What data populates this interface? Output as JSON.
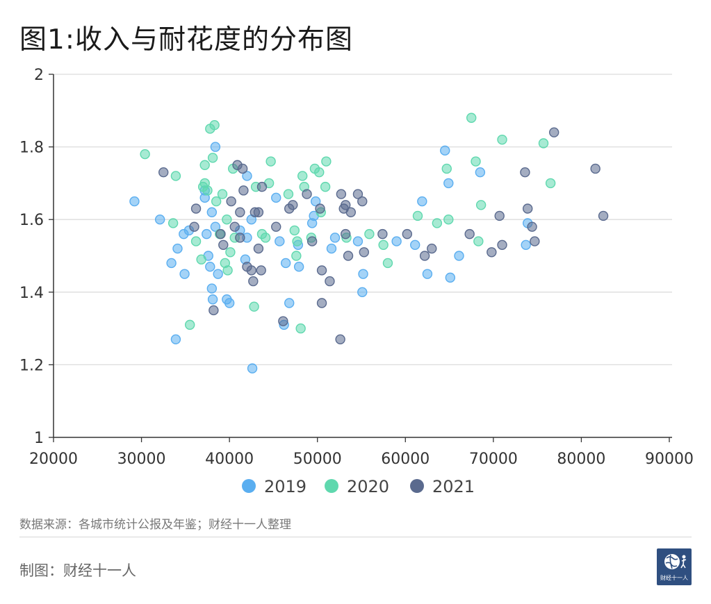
{
  "title": "图1:收入与耐花度的分布图",
  "source": "数据来源：各城市统计公报及年鉴；财经十一人整理",
  "maker": "制图：财经十一人",
  "logo_text": "财经十一人",
  "chart_data": {
    "type": "scatter",
    "title": "图1:收入与耐花度的分布图",
    "xlabel": "",
    "ylabel": "",
    "xlim": [
      20000,
      90000
    ],
    "ylim": [
      1,
      2
    ],
    "xticks": [
      "20000",
      "30000",
      "40000",
      "50000",
      "60000",
      "70000",
      "80000",
      "90000"
    ],
    "yticks": [
      "1",
      "1.2",
      "1.4",
      "1.6",
      "1.8",
      "2"
    ],
    "grid": "horizontal",
    "legend_position": "bottom",
    "series": [
      {
        "name": "2019",
        "color": "#5aaef0",
        "points": [
          [
            29200,
            1.65
          ],
          [
            32100,
            1.6
          ],
          [
            33400,
            1.48
          ],
          [
            33900,
            1.27
          ],
          [
            34100,
            1.52
          ],
          [
            34800,
            1.56
          ],
          [
            34900,
            1.45
          ],
          [
            35400,
            1.57
          ],
          [
            37200,
            1.66
          ],
          [
            37200,
            1.68
          ],
          [
            37400,
            1.56
          ],
          [
            37600,
            1.5
          ],
          [
            37800,
            1.47
          ],
          [
            38000,
            1.62
          ],
          [
            38000,
            1.41
          ],
          [
            38100,
            1.38
          ],
          [
            38400,
            1.8
          ],
          [
            38400,
            1.58
          ],
          [
            38700,
            1.45
          ],
          [
            39700,
            1.38
          ],
          [
            40000,
            1.37
          ],
          [
            41200,
            1.57
          ],
          [
            41800,
            1.49
          ],
          [
            42000,
            1.55
          ],
          [
            42000,
            1.72
          ],
          [
            42500,
            1.6
          ],
          [
            42600,
            1.19
          ],
          [
            45300,
            1.66
          ],
          [
            45700,
            1.54
          ],
          [
            46200,
            1.31
          ],
          [
            46400,
            1.48
          ],
          [
            46800,
            1.37
          ],
          [
            47800,
            1.53
          ],
          [
            47900,
            1.47
          ],
          [
            49400,
            1.59
          ],
          [
            49600,
            1.61
          ],
          [
            49800,
            1.65
          ],
          [
            51600,
            1.52
          ],
          [
            52000,
            1.55
          ],
          [
            54600,
            1.54
          ],
          [
            55100,
            1.4
          ],
          [
            55200,
            1.45
          ],
          [
            59000,
            1.54
          ],
          [
            61100,
            1.53
          ],
          [
            61900,
            1.65
          ],
          [
            62500,
            1.45
          ],
          [
            64500,
            1.79
          ],
          [
            64900,
            1.7
          ],
          [
            65100,
            1.44
          ],
          [
            66100,
            1.5
          ],
          [
            68500,
            1.73
          ],
          [
            73700,
            1.53
          ],
          [
            73900,
            1.59
          ]
        ]
      },
      {
        "name": "2020",
        "color": "#5fd8ae",
        "points": [
          [
            30400,
            1.78
          ],
          [
            33600,
            1.59
          ],
          [
            33900,
            1.72
          ],
          [
            35500,
            1.31
          ],
          [
            36200,
            1.54
          ],
          [
            36800,
            1.49
          ],
          [
            37000,
            1.69
          ],
          [
            37200,
            1.75
          ],
          [
            37200,
            1.7
          ],
          [
            37500,
            1.68
          ],
          [
            37800,
            1.85
          ],
          [
            38100,
            1.77
          ],
          [
            38300,
            1.86
          ],
          [
            38500,
            1.65
          ],
          [
            38900,
            1.56
          ],
          [
            39200,
            1.67
          ],
          [
            39500,
            1.48
          ],
          [
            39700,
            1.6
          ],
          [
            39800,
            1.46
          ],
          [
            40100,
            1.51
          ],
          [
            40400,
            1.74
          ],
          [
            40600,
            1.55
          ],
          [
            42800,
            1.36
          ],
          [
            43000,
            1.69
          ],
          [
            43700,
            1.56
          ],
          [
            44100,
            1.55
          ],
          [
            44500,
            1.7
          ],
          [
            44700,
            1.76
          ],
          [
            46700,
            1.67
          ],
          [
            47400,
            1.57
          ],
          [
            47600,
            1.5
          ],
          [
            47700,
            1.54
          ],
          [
            48100,
            1.3
          ],
          [
            48300,
            1.72
          ],
          [
            48500,
            1.69
          ],
          [
            49300,
            1.55
          ],
          [
            49700,
            1.74
          ],
          [
            50200,
            1.73
          ],
          [
            50400,
            1.62
          ],
          [
            50900,
            1.69
          ],
          [
            51000,
            1.76
          ],
          [
            53300,
            1.55
          ],
          [
            55900,
            1.56
          ],
          [
            57500,
            1.53
          ],
          [
            58000,
            1.48
          ],
          [
            61400,
            1.61
          ],
          [
            63600,
            1.59
          ],
          [
            64700,
            1.74
          ],
          [
            64900,
            1.6
          ],
          [
            67500,
            1.88
          ],
          [
            68000,
            1.76
          ],
          [
            68300,
            1.54
          ],
          [
            68600,
            1.64
          ],
          [
            71000,
            1.82
          ],
          [
            75700,
            1.81
          ],
          [
            76500,
            1.7
          ]
        ]
      },
      {
        "name": "2021",
        "color": "#5a6a8e",
        "points": [
          [
            32500,
            1.73
          ],
          [
            36000,
            1.58
          ],
          [
            36200,
            1.63
          ],
          [
            38200,
            1.35
          ],
          [
            39000,
            1.56
          ],
          [
            39300,
            1.53
          ],
          [
            40200,
            1.65
          ],
          [
            40600,
            1.58
          ],
          [
            40900,
            1.75
          ],
          [
            41200,
            1.55
          ],
          [
            41200,
            1.62
          ],
          [
            41500,
            1.74
          ],
          [
            41600,
            1.68
          ],
          [
            42000,
            1.47
          ],
          [
            42500,
            1.46
          ],
          [
            42700,
            1.43
          ],
          [
            42900,
            1.62
          ],
          [
            43300,
            1.62
          ],
          [
            43300,
            1.52
          ],
          [
            43600,
            1.46
          ],
          [
            43700,
            1.69
          ],
          [
            45300,
            1.58
          ],
          [
            46100,
            1.32
          ],
          [
            46800,
            1.63
          ],
          [
            47200,
            1.64
          ],
          [
            48800,
            1.67
          ],
          [
            49400,
            1.54
          ],
          [
            50300,
            1.63
          ],
          [
            50500,
            1.46
          ],
          [
            50500,
            1.37
          ],
          [
            51400,
            1.43
          ],
          [
            52600,
            1.27
          ],
          [
            52700,
            1.67
          ],
          [
            53000,
            1.63
          ],
          [
            53200,
            1.64
          ],
          [
            53200,
            1.56
          ],
          [
            53500,
            1.5
          ],
          [
            53800,
            1.62
          ],
          [
            54600,
            1.67
          ],
          [
            55100,
            1.65
          ],
          [
            55300,
            1.51
          ],
          [
            57400,
            1.56
          ],
          [
            60200,
            1.56
          ],
          [
            62200,
            1.5
          ],
          [
            63000,
            1.52
          ],
          [
            67300,
            1.56
          ],
          [
            69800,
            1.51
          ],
          [
            70700,
            1.61
          ],
          [
            71000,
            1.53
          ],
          [
            73600,
            1.73
          ],
          [
            73900,
            1.63
          ],
          [
            74400,
            1.58
          ],
          [
            74700,
            1.54
          ],
          [
            76900,
            1.84
          ],
          [
            81600,
            1.74
          ],
          [
            82500,
            1.61
          ]
        ]
      }
    ]
  }
}
